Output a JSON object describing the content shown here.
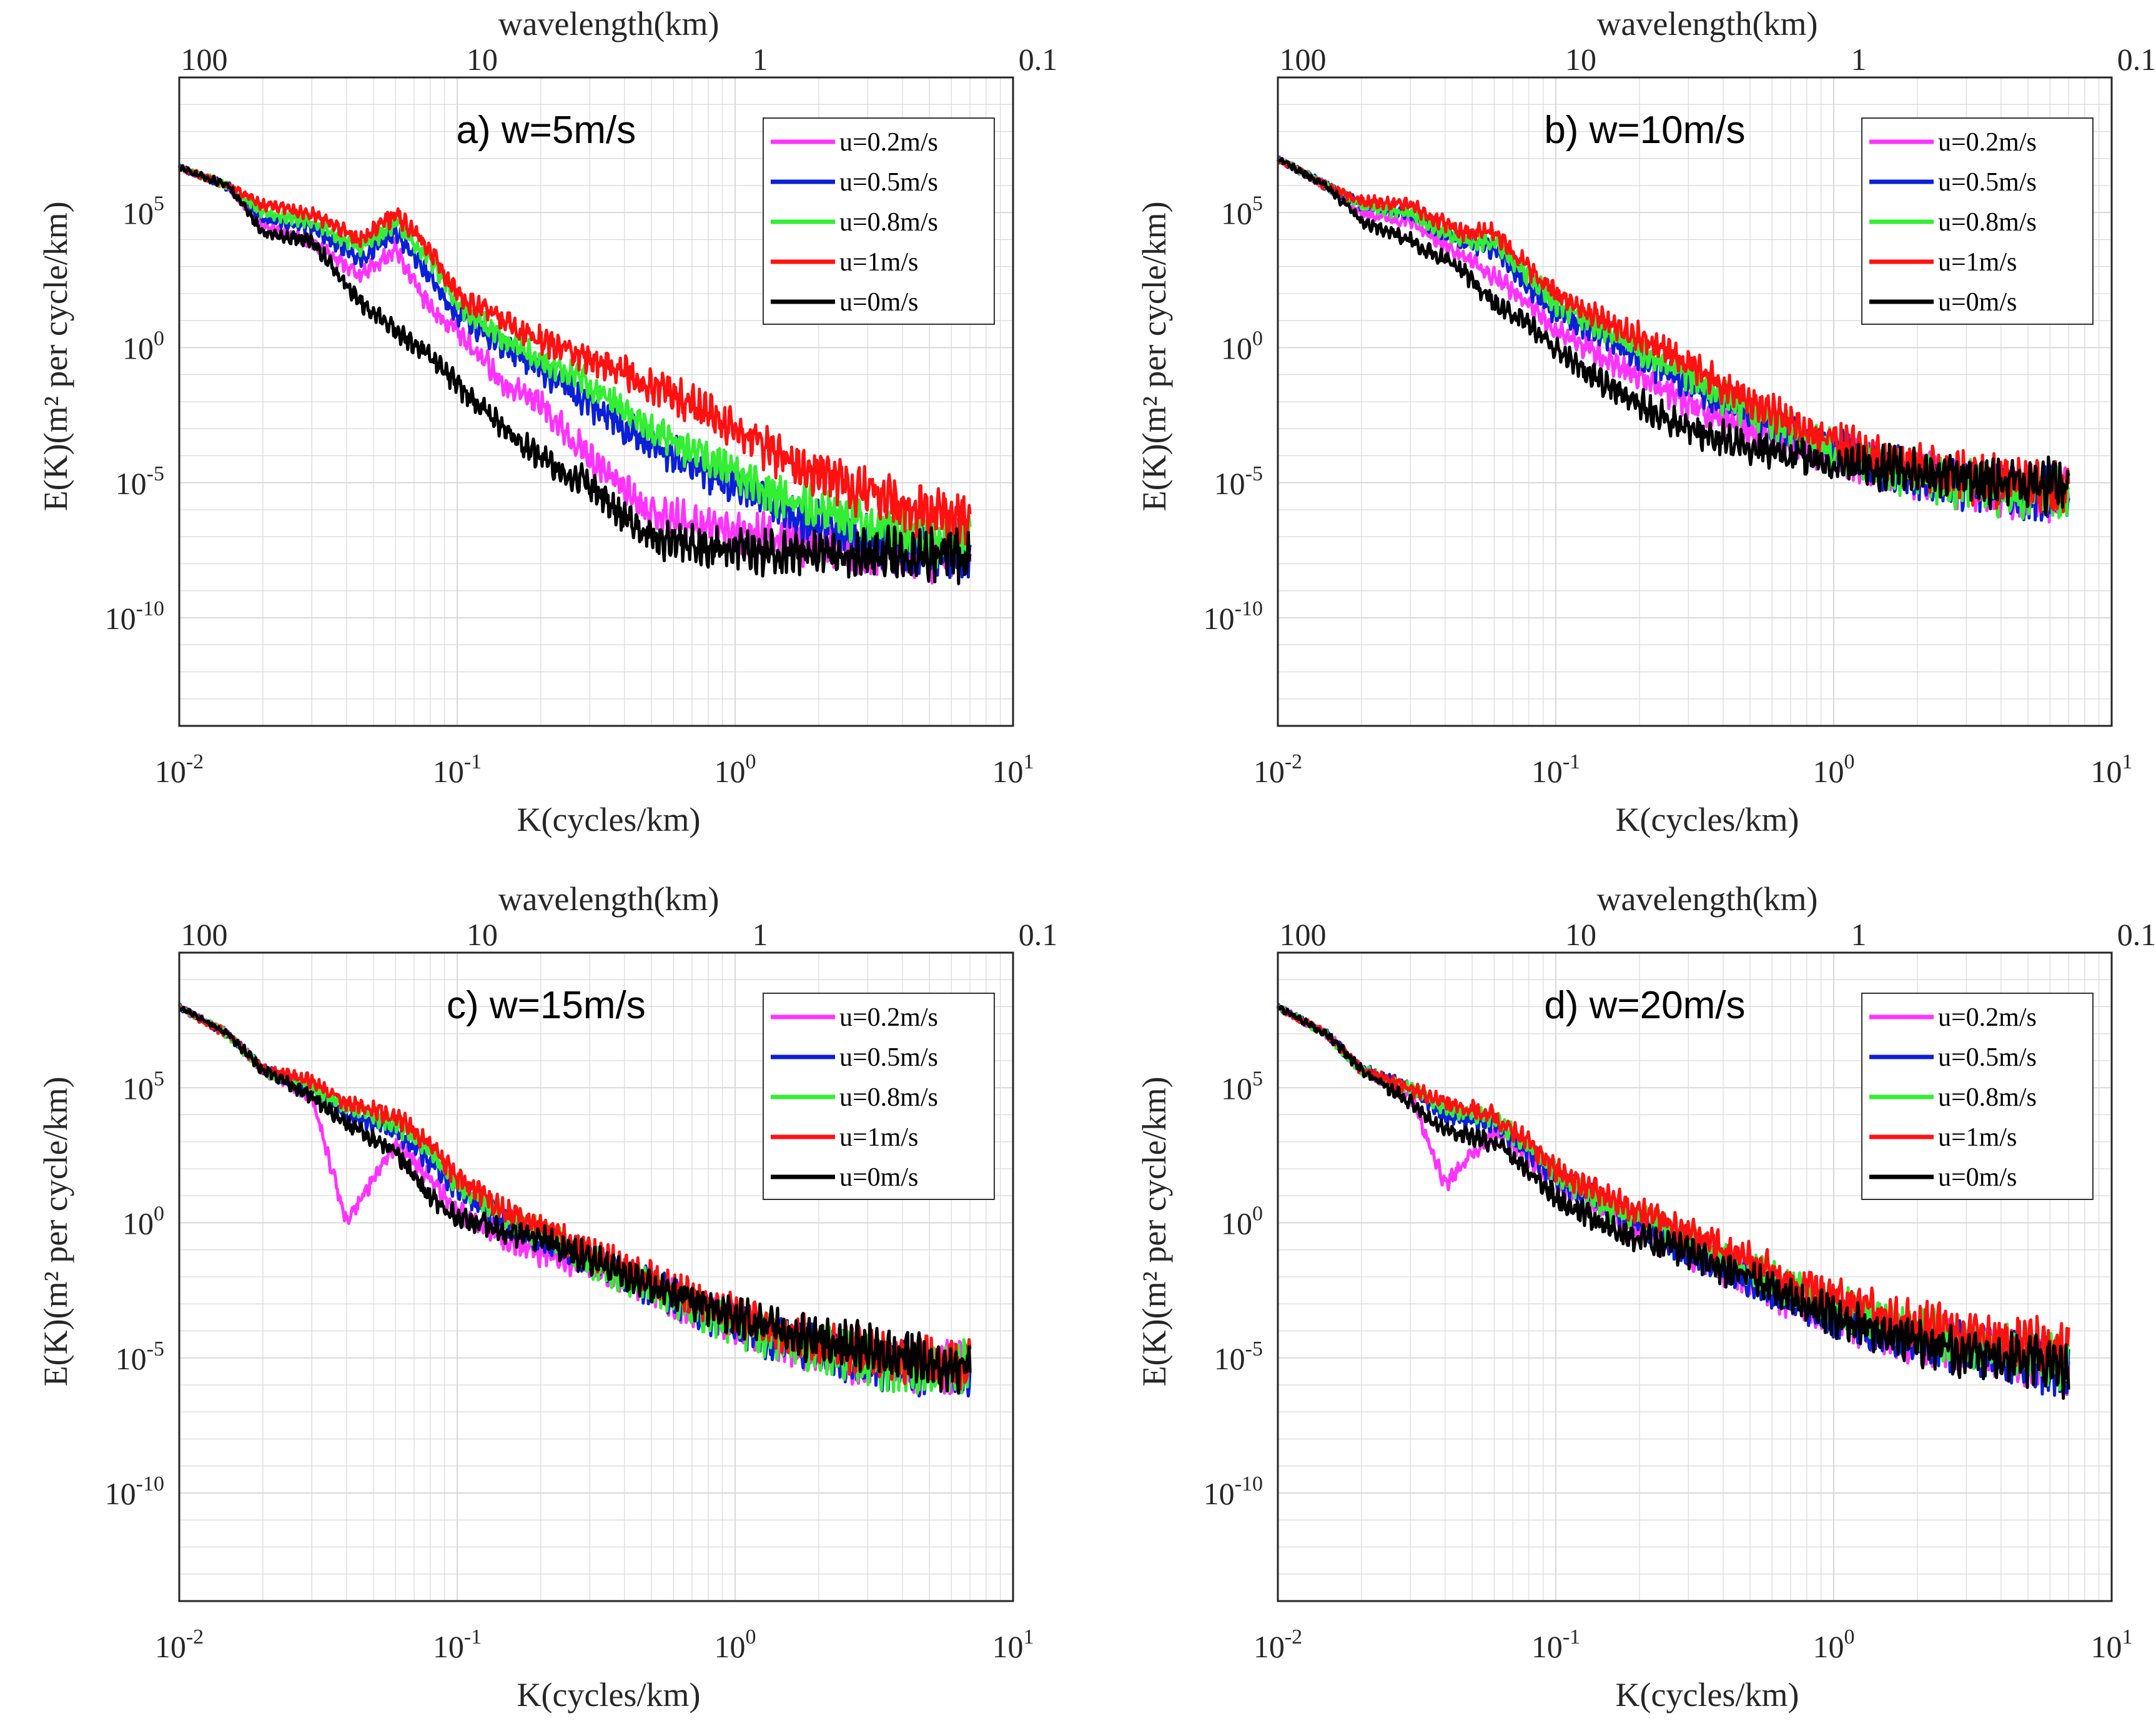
{
  "colors": {
    "series": [
      "#ff33ff",
      "#0a1fd6",
      "#33ee33",
      "#ff1111",
      "#000000"
    ],
    "grid": "#d9d9d9",
    "axis": "#262626"
  },
  "chart_data": [
    {
      "type": "line",
      "title": "a) w=5m/s",
      "xlabel": "K(cycles/km)",
      "ylabel": "E(K)(m² per cycle/km)",
      "top_xlabel": "wavelength(km)",
      "xscale": "log",
      "yscale": "log",
      "xlim": [
        0.01,
        10
      ],
      "ylim": [
        1e-14,
        10000000000.0
      ],
      "xticks": [
        "10^-2",
        "10^-1",
        "10^0",
        "10^1"
      ],
      "yticks": [
        "10^5",
        "10^0",
        "10^-5",
        "10^-10"
      ],
      "top_ticks": [
        "100",
        "10",
        "1",
        "0.1"
      ],
      "legend_position": "top-right",
      "series": [
        {
          "name": "u=0.2m/s",
          "x": [
            0.01,
            0.015,
            0.02,
            0.03,
            0.045,
            0.06,
            0.08,
            0.1,
            0.15,
            0.2,
            0.3,
            0.5,
            0.8,
            1.5,
            3,
            5,
            7
          ],
          "y": [
            5000000.0,
            1000000.0,
            30000.0,
            10000.0,
            500,
            5000,
            30,
            5,
            0.05,
            0.01,
            0.0001,
            1e-06,
            3e-07,
            1e-07,
            5e-08,
            3e-08,
            5e-08
          ]
        },
        {
          "name": "u=0.5m/s",
          "x": [
            0.01,
            0.015,
            0.02,
            0.03,
            0.045,
            0.06,
            0.08,
            0.1,
            0.15,
            0.2,
            0.3,
            0.5,
            0.8,
            1.5,
            3,
            5,
            7
          ],
          "y": [
            5000000.0,
            1000000.0,
            60000.0,
            30000.0,
            2000,
            20000.0,
            500,
            20,
            1,
            0.2,
            0.01,
            0.0003,
            3e-05,
            1e-06,
            1e-07,
            5e-08,
            5e-08
          ]
        },
        {
          "name": "u=0.8m/s",
          "x": [
            0.01,
            0.015,
            0.02,
            0.03,
            0.045,
            0.06,
            0.08,
            0.1,
            0.15,
            0.2,
            0.3,
            0.5,
            0.8,
            1.5,
            3,
            5,
            7
          ],
          "y": [
            5000000.0,
            1000000.0,
            100000.0,
            50000.0,
            5000,
            50000.0,
            2000,
            50,
            2,
            0.5,
            0.05,
            0.001,
            0.0001,
            3e-06,
            3e-07,
            1e-07,
            1e-07
          ]
        },
        {
          "name": "u=1m/s",
          "x": [
            0.01,
            0.015,
            0.02,
            0.03,
            0.045,
            0.06,
            0.08,
            0.1,
            0.15,
            0.2,
            0.3,
            0.5,
            0.8,
            1.5,
            3,
            5,
            7
          ],
          "y": [
            5000000.0,
            1000000.0,
            200000.0,
            100000.0,
            10000.0,
            100000.0,
            5000,
            100,
            10,
            2,
            0.5,
            0.05,
            0.005,
            0.0001,
            5e-06,
            1e-06,
            5e-07
          ]
        },
        {
          "name": "u=0m/s",
          "x": [
            0.01,
            0.015,
            0.02,
            0.03,
            0.045,
            0.06,
            0.08,
            0.1,
            0.15,
            0.2,
            0.3,
            0.5,
            0.8,
            1.5,
            3,
            5,
            7
          ],
          "y": [
            5000000.0,
            1000000.0,
            20000.0,
            10000.0,
            50,
            5,
            0.5,
            0.05,
            0.001,
            0.0001,
            1e-05,
            1e-07,
            5e-08,
            3e-08,
            3e-08,
            3e-08,
            3e-08
          ]
        }
      ]
    },
    {
      "type": "line",
      "title": "b) w=10m/s",
      "xlabel": "K(cycles/km)",
      "ylabel": "E(K)(m² per cycle/km)",
      "top_xlabel": "wavelength(km)",
      "xscale": "log",
      "yscale": "log",
      "xlim": [
        0.01,
        10
      ],
      "ylim": [
        1e-14,
        10000000000.0
      ],
      "xticks": [
        "10^-2",
        "10^-1",
        "10^0",
        "10^1"
      ],
      "yticks": [
        "10^5",
        "10^0",
        "10^-5",
        "10^-10"
      ],
      "top_ticks": [
        "100",
        "10",
        "1",
        "0.1"
      ],
      "legend_position": "top-right",
      "series": [
        {
          "name": "u=0.2m/s",
          "x": [
            0.01,
            0.015,
            0.02,
            0.03,
            0.045,
            0.06,
            0.08,
            0.1,
            0.15,
            0.2,
            0.3,
            0.5,
            0.8,
            1.5,
            3,
            5,
            7
          ],
          "y": [
            10000000.0,
            1000000.0,
            100000.0,
            50000.0,
            3000,
            500,
            50,
            5,
            0.5,
            0.1,
            0.01,
            0.001,
            0.0003,
            5e-05,
            1e-05,
            5e-06,
            5e-06
          ]
        },
        {
          "name": "u=0.5m/s",
          "x": [
            0.01,
            0.015,
            0.02,
            0.03,
            0.045,
            0.06,
            0.08,
            0.1,
            0.15,
            0.2,
            0.3,
            0.5,
            0.8,
            1.5,
            3,
            5,
            7
          ],
          "y": [
            10000000.0,
            1000000.0,
            200000.0,
            100000.0,
            10000.0,
            5000,
            200,
            20,
            3,
            0.5,
            0.05,
            0.003,
            0.0005,
            5e-05,
            1e-05,
            5e-06,
            5e-06
          ]
        },
        {
          "name": "u=0.8m/s",
          "x": [
            0.01,
            0.015,
            0.02,
            0.03,
            0.045,
            0.06,
            0.08,
            0.1,
            0.15,
            0.2,
            0.3,
            0.5,
            0.8,
            1.5,
            3,
            5,
            7
          ],
          "y": [
            10000000.0,
            1000000.0,
            200000.0,
            100000.0,
            10000.0,
            10000.0,
            500,
            50,
            5,
            1,
            0.1,
            0.005,
            0.0005,
            5e-05,
            1e-05,
            5e-06,
            5e-06
          ]
        },
        {
          "name": "u=1m/s",
          "x": [
            0.01,
            0.015,
            0.02,
            0.03,
            0.045,
            0.06,
            0.08,
            0.1,
            0.15,
            0.2,
            0.3,
            0.5,
            0.8,
            1.5,
            3,
            5,
            7
          ],
          "y": [
            10000000.0,
            1000000.0,
            300000.0,
            200000.0,
            20000.0,
            20000.0,
            1000,
            100,
            10,
            3,
            0.3,
            0.01,
            0.001,
            0.0001,
            2e-05,
            1e-05,
            5e-06
          ]
        },
        {
          "name": "u=0m/s",
          "x": [
            0.01,
            0.015,
            0.02,
            0.03,
            0.045,
            0.06,
            0.08,
            0.1,
            0.15,
            0.2,
            0.3,
            0.5,
            0.8,
            1.5,
            3,
            5,
            7
          ],
          "y": [
            10000000.0,
            1000000.0,
            50000.0,
            10000.0,
            1000,
            50,
            10,
            1,
            0.05,
            0.01,
            0.001,
            0.0003,
            0.0001,
            5e-05,
            2e-05,
            1e-05,
            1e-05
          ]
        }
      ]
    },
    {
      "type": "line",
      "title": "c) w=15m/s",
      "xlabel": "K(cycles/km)",
      "ylabel": "E(K)(m² per cycle/km)",
      "top_xlabel": "wavelength(km)",
      "xscale": "log",
      "yscale": "log",
      "xlim": [
        0.01,
        10
      ],
      "ylim": [
        1e-14,
        10000000000.0
      ],
      "xticks": [
        "10^-2",
        "10^-1",
        "10^0",
        "10^1"
      ],
      "yticks": [
        "10^5",
        "10^0",
        "10^-5",
        "10^-10"
      ],
      "top_ticks": [
        "100",
        "10",
        "1",
        "0.1"
      ],
      "legend_position": "top-right",
      "series": [
        {
          "name": "u=0.2m/s",
          "x": [
            0.01,
            0.015,
            0.02,
            0.03,
            0.04,
            0.06,
            0.08,
            0.1,
            0.15,
            0.2,
            0.3,
            0.5,
            0.8,
            1.5,
            3,
            5,
            7
          ],
          "y": [
            100000000.0,
            10000000.0,
            500000.0,
            50000.0,
            1,
            1000,
            50,
            3,
            0.3,
            0.1,
            0.03,
            0.005,
            0.0005,
            5e-05,
            1e-05,
            5e-06,
            5e-06
          ]
        },
        {
          "name": "u=0.5m/s",
          "x": [
            0.01,
            0.015,
            0.02,
            0.03,
            0.04,
            0.06,
            0.08,
            0.1,
            0.15,
            0.2,
            0.3,
            0.5,
            0.8,
            1.5,
            3,
            5,
            7
          ],
          "y": [
            100000000.0,
            10000000.0,
            500000.0,
            100000.0,
            10000.0,
            3000,
            200,
            20,
            1,
            0.3,
            0.05,
            0.005,
            0.0005,
            5e-05,
            1e-05,
            5e-06,
            5e-06
          ]
        },
        {
          "name": "u=0.8m/s",
          "x": [
            0.01,
            0.015,
            0.02,
            0.03,
            0.04,
            0.06,
            0.08,
            0.1,
            0.15,
            0.2,
            0.3,
            0.5,
            0.8,
            1.5,
            3,
            5,
            7
          ],
          "y": [
            100000000.0,
            10000000.0,
            500000.0,
            100000.0,
            20000.0,
            5000,
            500,
            30,
            2,
            0.5,
            0.05,
            0.005,
            0.0005,
            5e-05,
            1e-05,
            5e-06,
            5e-06
          ]
        },
        {
          "name": "u=1m/s",
          "x": [
            0.01,
            0.015,
            0.02,
            0.03,
            0.04,
            0.06,
            0.08,
            0.1,
            0.15,
            0.2,
            0.3,
            0.5,
            0.8,
            1.5,
            3,
            5,
            7
          ],
          "y": [
            100000000.0,
            10000000.0,
            500000.0,
            200000.0,
            30000.0,
            10000.0,
            1000,
            50,
            3,
            1,
            0.1,
            0.01,
            0.001,
            0.0001,
            2e-05,
            1e-05,
            5e-06
          ]
        },
        {
          "name": "u=0m/s",
          "x": [
            0.01,
            0.015,
            0.02,
            0.03,
            0.04,
            0.06,
            0.08,
            0.1,
            0.15,
            0.2,
            0.3,
            0.5,
            0.8,
            1.5,
            3,
            5,
            7
          ],
          "y": [
            100000000.0,
            10000000.0,
            500000.0,
            50000.0,
            5000,
            500,
            10,
            2,
            0.5,
            0.3,
            0.05,
            0.005,
            0.001,
            0.0001,
            3e-05,
            1e-05,
            5e-06
          ]
        }
      ]
    },
    {
      "type": "line",
      "title": "d) w=20m/s",
      "xlabel": "K(cycles/km)",
      "ylabel": "E(K)(m² per cycle/km)",
      "top_xlabel": "wavelength(km)",
      "xscale": "log",
      "yscale": "log",
      "xlim": [
        0.01,
        10
      ],
      "ylim": [
        1e-14,
        10000000000.0
      ],
      "xticks": [
        "10^-2",
        "10^-1",
        "10^0",
        "10^1"
      ],
      "yticks": [
        "10^5",
        "10^0",
        "10^-5",
        "10^-10"
      ],
      "top_ticks": [
        "100",
        "10",
        "1",
        "0.1"
      ],
      "legend_position": "top-right",
      "series": [
        {
          "name": "u=0.2m/s",
          "x": [
            0.01,
            0.015,
            0.02,
            0.03,
            0.04,
            0.06,
            0.08,
            0.1,
            0.15,
            0.2,
            0.3,
            0.5,
            0.8,
            1.5,
            3,
            5,
            7
          ],
          "y": [
            100000000.0,
            10000000.0,
            500000.0,
            50000.0,
            30,
            3000,
            300,
            30,
            3,
            0.5,
            0.1,
            0.01,
            0.001,
            0.0001,
            3e-05,
            1e-05,
            5e-06
          ]
        },
        {
          "name": "u=0.5m/s",
          "x": [
            0.01,
            0.015,
            0.02,
            0.03,
            0.04,
            0.06,
            0.08,
            0.1,
            0.15,
            0.2,
            0.3,
            0.5,
            0.8,
            1.5,
            3,
            5,
            7
          ],
          "y": [
            100000000.0,
            10000000.0,
            500000.0,
            100000.0,
            10000.0,
            5000,
            500,
            50,
            5,
            1,
            0.1,
            0.01,
            0.001,
            0.0001,
            3e-05,
            1e-05,
            5e-06
          ]
        },
        {
          "name": "u=0.8m/s",
          "x": [
            0.01,
            0.015,
            0.02,
            0.03,
            0.04,
            0.06,
            0.08,
            0.1,
            0.15,
            0.2,
            0.3,
            0.5,
            0.8,
            1.5,
            3,
            5,
            7
          ],
          "y": [
            100000000.0,
            10000000.0,
            500000.0,
            100000.0,
            20000.0,
            8000,
            800,
            80,
            5,
            2,
            0.3,
            0.02,
            0.003,
            0.0003,
            5e-05,
            2e-05,
            1e-05
          ]
        },
        {
          "name": "u=1m/s",
          "x": [
            0.01,
            0.015,
            0.02,
            0.03,
            0.04,
            0.06,
            0.08,
            0.1,
            0.15,
            0.2,
            0.3,
            0.5,
            0.8,
            1.5,
            3,
            5,
            7
          ],
          "y": [
            100000000.0,
            10000000.0,
            500000.0,
            100000.0,
            30000.0,
            10000.0,
            1000,
            100,
            10,
            3,
            0.5,
            0.05,
            0.005,
            0.0005,
            0.0001,
            5e-05,
            2e-05
          ]
        },
        {
          "name": "u=0m/s",
          "x": [
            0.01,
            0.015,
            0.02,
            0.03,
            0.04,
            0.06,
            0.08,
            0.1,
            0.15,
            0.2,
            0.3,
            0.5,
            0.8,
            1.5,
            3,
            5,
            7
          ],
          "y": [
            100000000.0,
            10000000.0,
            500000.0,
            30000.0,
            3000,
            1000,
            100,
            10,
            1,
            0.3,
            0.1,
            0.01,
            0.001,
            0.0001,
            2e-05,
            1e-05,
            5e-06
          ]
        }
      ]
    }
  ]
}
